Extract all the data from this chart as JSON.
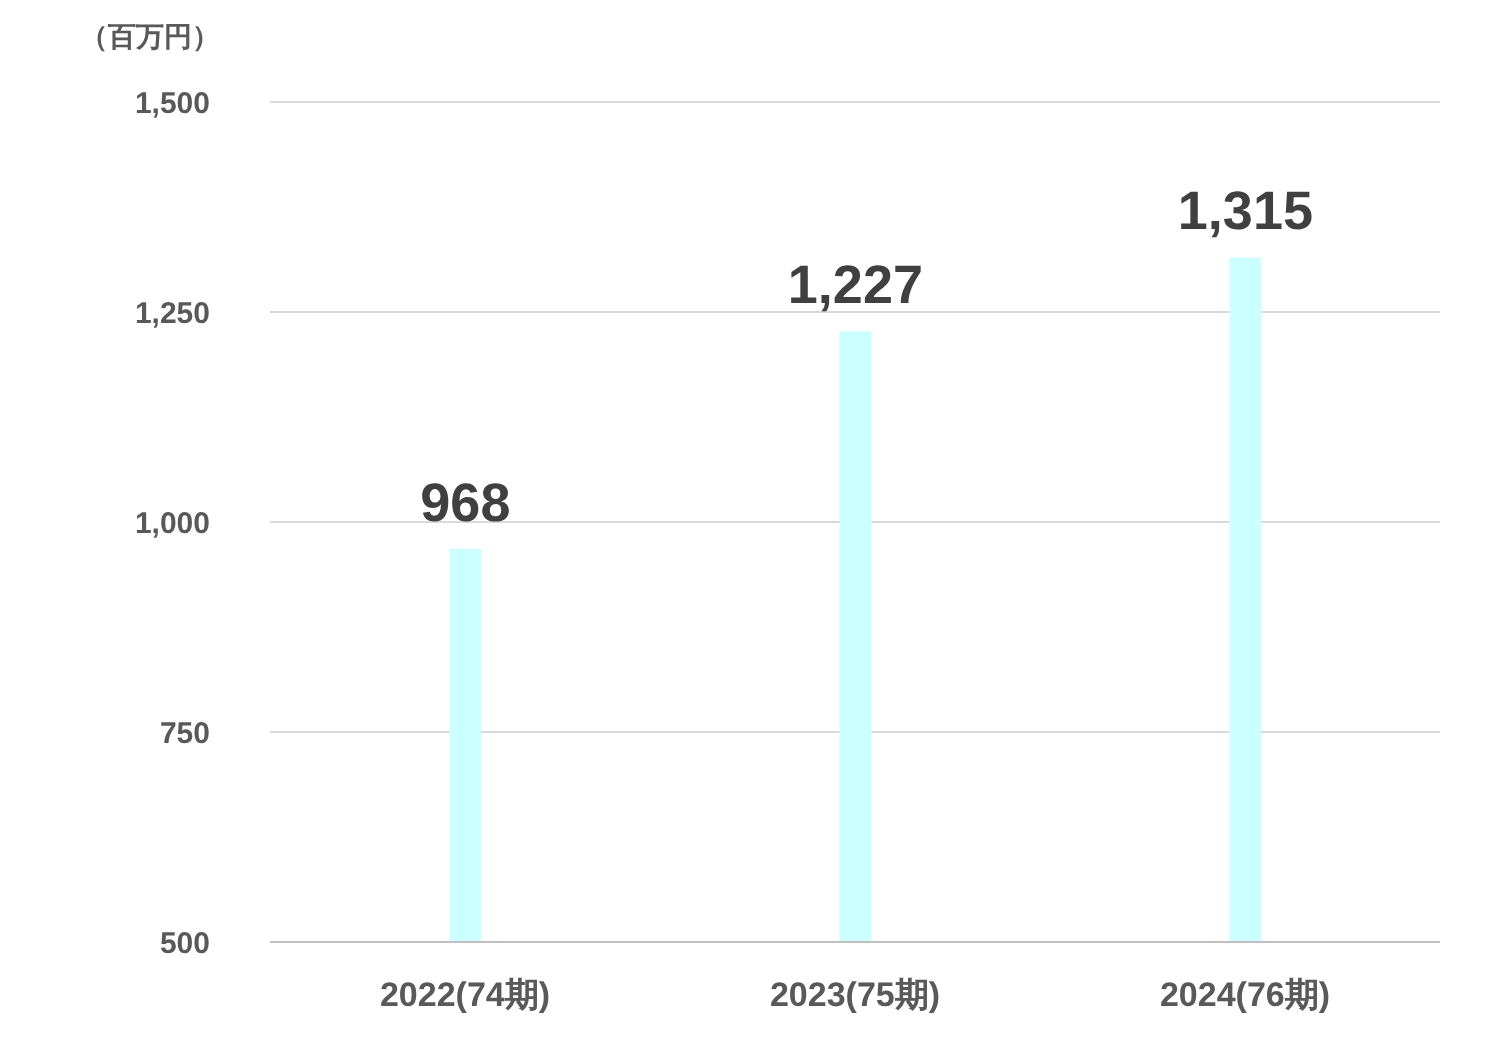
{
  "chart_data": {
    "type": "bar",
    "ylabel": "（百万円）",
    "categories": [
      "2022(74期)",
      "2023(75期)",
      "2024(76期)"
    ],
    "values": [
      968,
      1227,
      1315
    ],
    "value_labels": [
      "968",
      "1,227",
      "1,315"
    ],
    "color": "#ccffff",
    "ylim": [
      500,
      1500
    ],
    "yticks": [
      {
        "value": 500,
        "label": "500"
      },
      {
        "value": 750,
        "label": "750"
      },
      {
        "value": 1000,
        "label": "1,000"
      },
      {
        "value": 1250,
        "label": "1,250"
      },
      {
        "value": 1500,
        "label": "1,500"
      }
    ],
    "grid": "y"
  }
}
